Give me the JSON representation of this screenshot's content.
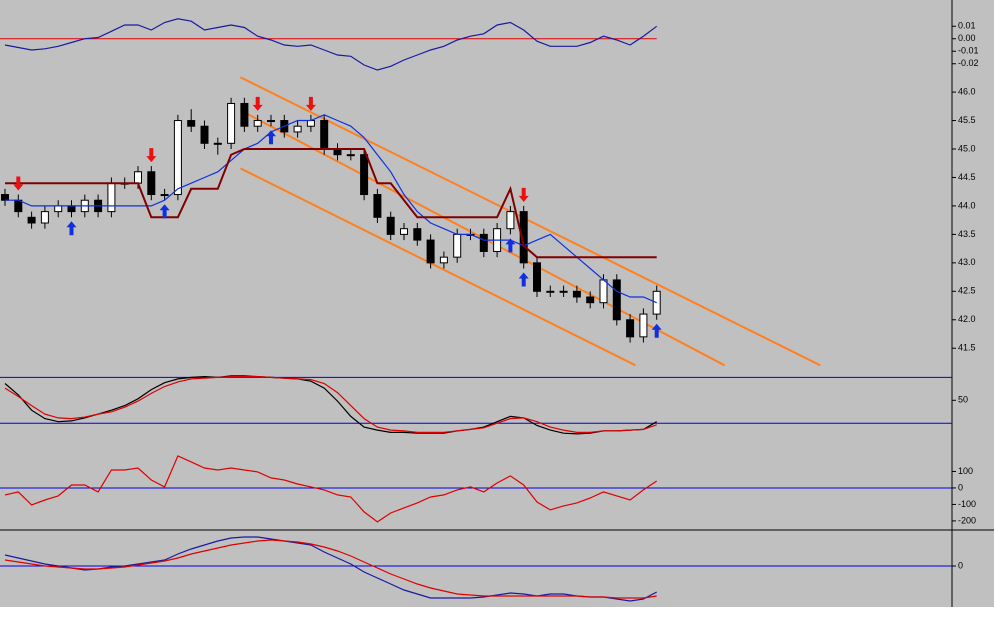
{
  "chart_data": [
    {
      "type": "line",
      "ylim": [
        -0.029,
        0.031
      ],
      "yticks": [
        0.01,
        {
          "value": 0,
          "label": "0.00"
        },
        -0.01,
        -0.02
      ],
      "hlines": [
        0
      ],
      "hline_color": "#e00000",
      "series": [
        {
          "color": "#1a1aa0",
          "values": [
            -0.005,
            -0.007,
            -0.009,
            -0.008,
            -0.006,
            -0.003,
            0.0,
            0.001,
            0.006,
            0.011,
            0.011,
            0.007,
            0.013,
            0.016,
            0.014,
            0.007,
            0.009,
            0.011,
            0.009,
            0.002,
            -0.001,
            -0.005,
            -0.006,
            -0.005,
            -0.009,
            -0.013,
            -0.014,
            -0.021,
            -0.025,
            -0.022,
            -0.017,
            -0.013,
            -0.009,
            -0.006,
            -0.001,
            0.002,
            0.004,
            0.011,
            0.013,
            0.007,
            -0.002,
            -0.006,
            -0.006,
            -0.006,
            -0.003,
            0.002,
            -0.001,
            -0.005,
            0.002,
            0.01
          ]
        }
      ]
    },
    {
      "type": "candlestick",
      "ylim": [
        41.1,
        46.3
      ],
      "yticks": [
        {
          "value": 46,
          "label": "46.0"
        },
        45.5,
        {
          "value": 45,
          "label": "45.0"
        },
        44.5,
        {
          "value": 44,
          "label": "44.0"
        },
        43.5,
        {
          "value": 43,
          "label": "43.0"
        },
        42.5,
        {
          "value": 42,
          "label": "42.0"
        },
        41.5
      ],
      "open": [
        44.2,
        44.1,
        43.8,
        43.7,
        43.9,
        44.0,
        43.9,
        44.1,
        43.9,
        44.4,
        44.4,
        44.6,
        44.2,
        44.2,
        45.5,
        45.4,
        45.1,
        45.1,
        45.8,
        45.4,
        45.5,
        45.5,
        45.3,
        45.4,
        45.5,
        45.0,
        44.9,
        44.9,
        44.2,
        43.8,
        43.5,
        43.6,
        43.4,
        43.0,
        43.1,
        43.5,
        43.5,
        43.2,
        43.6,
        43.9,
        43.0,
        42.5,
        42.5,
        42.5,
        42.4,
        42.3,
        42.7,
        42.0,
        41.7,
        42.1
      ],
      "high": [
        44.3,
        44.2,
        43.9,
        44.0,
        44.1,
        44.1,
        44.2,
        44.2,
        44.5,
        44.5,
        44.7,
        44.7,
        44.3,
        45.6,
        45.7,
        45.5,
        45.2,
        45.9,
        45.9,
        45.6,
        45.6,
        45.6,
        45.5,
        45.6,
        45.6,
        45.1,
        45.0,
        45.0,
        44.3,
        43.9,
        43.7,
        43.7,
        43.5,
        43.2,
        43.6,
        43.6,
        43.6,
        43.7,
        44.0,
        44.0,
        43.1,
        42.6,
        42.6,
        42.6,
        42.5,
        42.8,
        42.8,
        42.1,
        42.2,
        42.6
      ],
      "low": [
        44.0,
        43.8,
        43.6,
        43.6,
        43.8,
        43.8,
        43.8,
        43.8,
        43.8,
        44.3,
        44.3,
        44.1,
        44.1,
        44.1,
        45.3,
        45.0,
        44.9,
        45.0,
        45.3,
        45.3,
        45.4,
        45.2,
        45.2,
        45.3,
        44.9,
        44.8,
        44.8,
        44.1,
        43.7,
        43.4,
        43.4,
        43.3,
        42.9,
        42.9,
        43.0,
        43.4,
        43.1,
        43.1,
        43.5,
        42.9,
        42.4,
        42.4,
        42.4,
        42.3,
        42.2,
        42.2,
        41.9,
        41.6,
        41.6,
        42.0
      ],
      "close": [
        44.1,
        43.9,
        43.7,
        43.9,
        44.0,
        43.9,
        44.1,
        43.9,
        44.4,
        44.4,
        44.6,
        44.2,
        44.2,
        45.5,
        45.4,
        45.1,
        45.1,
        45.8,
        45.4,
        45.5,
        45.5,
        45.3,
        45.4,
        45.5,
        45.0,
        44.9,
        44.9,
        44.2,
        43.8,
        43.5,
        43.6,
        43.4,
        43.0,
        43.1,
        43.5,
        43.5,
        43.2,
        43.6,
        43.9,
        43.0,
        42.5,
        42.5,
        42.5,
        42.4,
        42.3,
        42.7,
        42.0,
        41.7,
        42.1,
        42.5
      ],
      "series": [
        {
          "color": "#1030e0",
          "values": [
            44.1,
            44.1,
            44.0,
            44.0,
            44.0,
            44.0,
            44.0,
            44.0,
            44.0,
            44.0,
            44.0,
            44.0,
            44.1,
            44.3,
            44.4,
            44.5,
            44.6,
            44.8,
            45.0,
            45.1,
            45.3,
            45.4,
            45.5,
            45.5,
            45.6,
            45.5,
            45.4,
            45.2,
            44.9,
            44.6,
            44.2,
            43.9,
            43.7,
            43.6,
            43.5,
            43.5,
            43.4,
            43.4,
            43.4,
            43.3,
            43.4,
            43.5,
            43.3,
            43.1,
            42.9,
            42.7,
            42.5,
            42.4,
            42.4,
            42.3
          ]
        },
        {
          "color": "#800000",
          "values": [
            44.4,
            44.4,
            44.4,
            44.4,
            44.4,
            44.4,
            44.4,
            44.4,
            44.4,
            44.4,
            44.4,
            43.8,
            43.8,
            43.8,
            44.3,
            44.3,
            44.3,
            44.9,
            45.0,
            45.0,
            45.0,
            45.0,
            45.0,
            45.0,
            45.0,
            45.0,
            45.0,
            45.0,
            44.4,
            44.4,
            44.1,
            43.8,
            43.8,
            43.8,
            43.8,
            43.8,
            43.8,
            43.8,
            44.3,
            43.3,
            43.1,
            43.1,
            43.1,
            43.1,
            43.1,
            43.1,
            43.1,
            43.1,
            43.1,
            43.1
          ]
        }
      ],
      "channel_color": "#ff8020",
      "channel": [
        {
          "x": [
            17.7,
            61.3
          ],
          "values": [
            46.26,
            41.2
          ]
        },
        {
          "x": [
            17.7,
            54.1
          ],
          "values": [
            45.68,
            41.2
          ]
        },
        {
          "x": [
            17.7,
            47.4
          ],
          "values": [
            44.66,
            41.2
          ]
        }
      ],
      "sell_signals": [
        1,
        11,
        19,
        23,
        39
      ],
      "sell_color": "#ee1010",
      "buy_signals": [
        5,
        12,
        20,
        38,
        39,
        49
      ],
      "buy_color": "#1030e0"
    },
    {
      "type": "line",
      "ylim": [
        -15,
        87
      ],
      "yticks": [
        50
      ],
      "hlines": [
        20,
        80
      ],
      "hline_color": "#0000e0",
      "series": [
        {
          "color": "#000000",
          "values": [
            72,
            57,
            37,
            26,
            22,
            23,
            27,
            32,
            37,
            43,
            52,
            64,
            73,
            78,
            80,
            81,
            80,
            82,
            82,
            81,
            80,
            79,
            78,
            75,
            66,
            49,
            29,
            15,
            11,
            8,
            8,
            7,
            7,
            7,
            10,
            12,
            15,
            22,
            29,
            27,
            17,
            11,
            7,
            6,
            7,
            10,
            10,
            11,
            12,
            22
          ]
        },
        {
          "color": "#e00000",
          "values": [
            66,
            55,
            43,
            32,
            27,
            26,
            28,
            32,
            35,
            41,
            49,
            59,
            68,
            74,
            78,
            79,
            80,
            81,
            81,
            81,
            80,
            79,
            78,
            77,
            72,
            60,
            43,
            26,
            15,
            11,
            10,
            8,
            8,
            8,
            10,
            12,
            14,
            20,
            26,
            27,
            22,
            15,
            11,
            8,
            8,
            10,
            10,
            11,
            12,
            18
          ]
        }
      ]
    },
    {
      "type": "line",
      "ylim": [
        -255,
        230
      ],
      "yticks": [
        100,
        0,
        -100,
        -200
      ],
      "hlines": [
        0
      ],
      "hline_color": "#0000e0",
      "series": [
        {
          "color": "#e00000",
          "values": [
            -42,
            -24,
            -103,
            -73,
            -48,
            18,
            18,
            -24,
            109,
            109,
            121,
            48,
            6,
            194,
            158,
            121,
            109,
            121,
            109,
            97,
            61,
            48,
            24,
            6,
            -12,
            -42,
            -55,
            -145,
            -206,
            -152,
            -121,
            -91,
            -55,
            -42,
            -12,
            6,
            -24,
            30,
            73,
            18,
            -85,
            -133,
            -109,
            -91,
            -61,
            -24,
            -48,
            -73,
            -12,
            42
          ]
        }
      ]
    },
    {
      "type": "line",
      "ylim": [
        -41,
        35
      ],
      "yticks": [
        0
      ],
      "hlines": [
        0
      ],
      "hline_color": "#0000e0",
      "series": [
        {
          "color": "#1a1aa0",
          "values": [
            11,
            8,
            5,
            2,
            0,
            -2,
            -4,
            -3,
            -1,
            0,
            2,
            4,
            6,
            12,
            17,
            21,
            25,
            28,
            29,
            29,
            27,
            25,
            23,
            21,
            14,
            8,
            2,
            -6,
            -12,
            -18,
            -24,
            -28,
            -32,
            -32,
            -32,
            -32,
            -31,
            -29,
            -27,
            -28,
            -30,
            -28,
            -28,
            -30,
            -31,
            -31,
            -33,
            -35,
            -33,
            -26
          ]
        },
        {
          "color": "#e00000",
          "values": [
            6,
            4,
            2,
            0,
            -1,
            -2,
            -3,
            -3,
            -2,
            -1,
            1,
            3,
            5,
            8,
            12,
            15,
            18,
            21,
            23,
            25,
            26,
            25,
            24,
            22,
            19,
            15,
            10,
            4,
            -2,
            -8,
            -13,
            -18,
            -22,
            -25,
            -28,
            -29,
            -30,
            -30,
            -30,
            -30,
            -30,
            -30,
            -30,
            -30,
            -31,
            -31,
            -32,
            -32,
            -32,
            -30
          ]
        }
      ]
    }
  ]
}
